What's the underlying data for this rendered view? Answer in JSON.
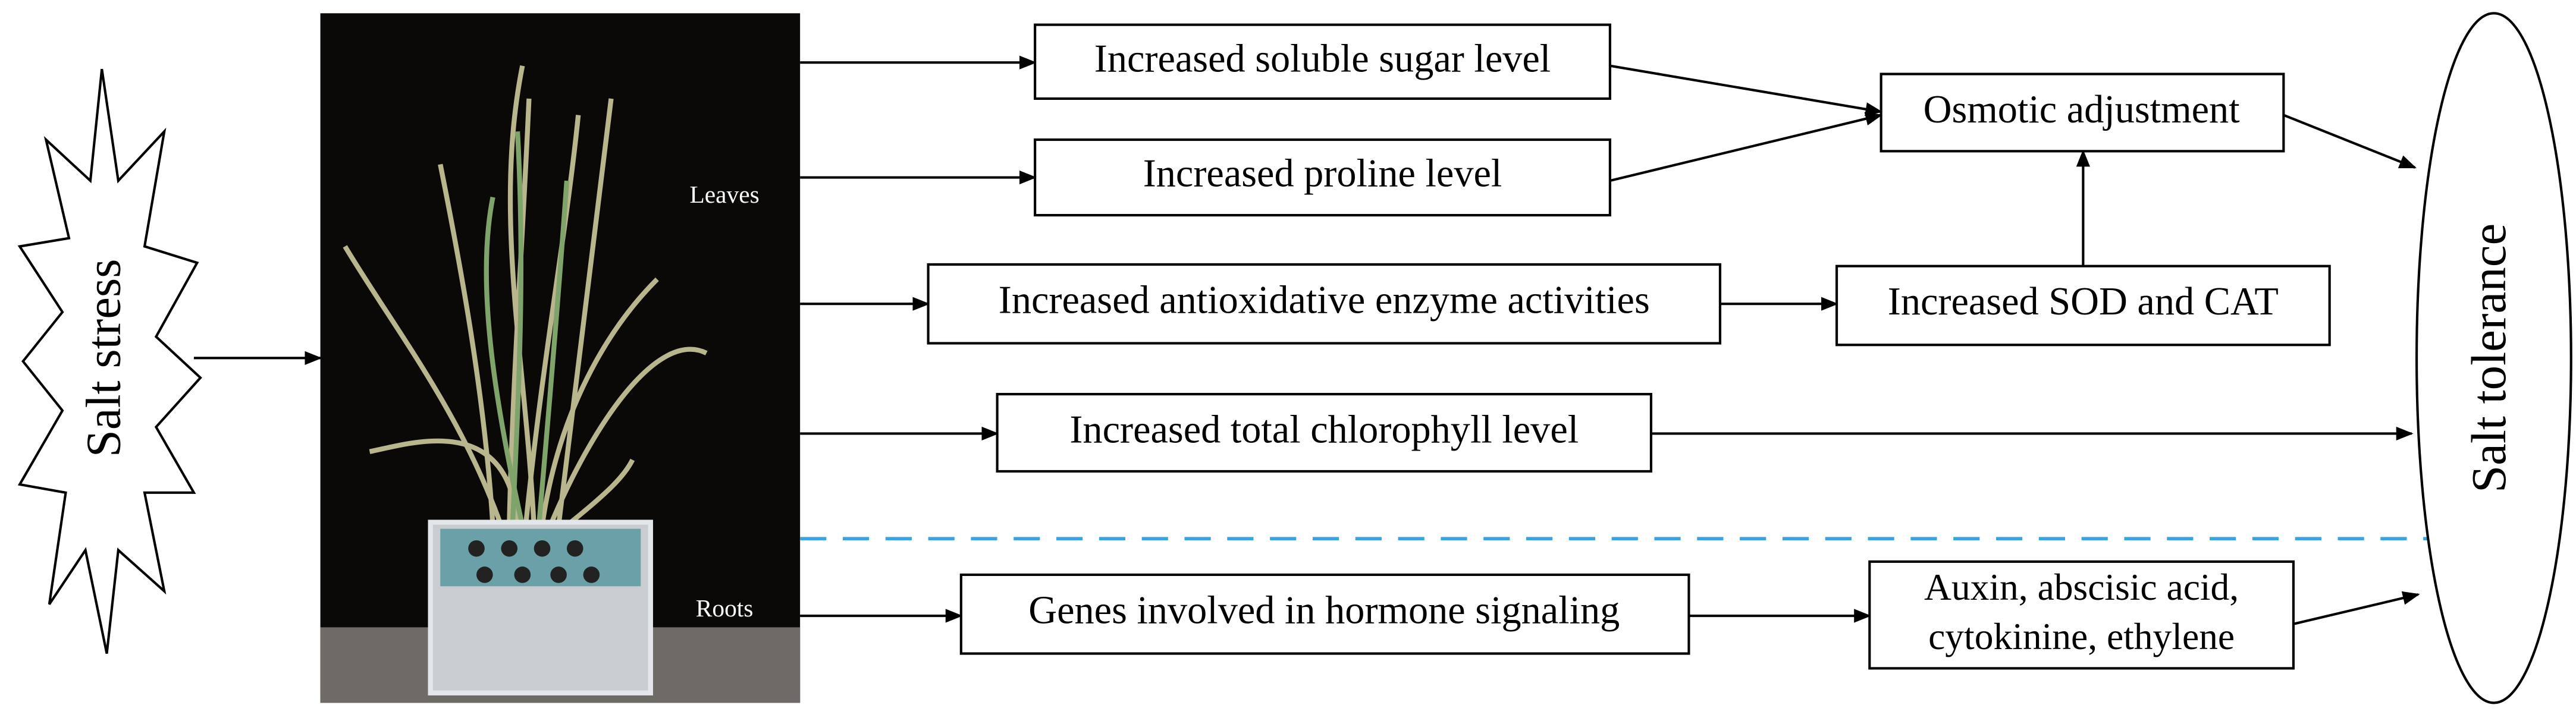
{
  "start": {
    "label": "Salt stress"
  },
  "photo": {
    "leaves_label": "Leaves",
    "roots_label": "Roots"
  },
  "nodes": [
    {
      "label": "Increased soluble sugar level"
    },
    {
      "label": "Increased proline level"
    },
    {
      "label": "Increased antioxidative enzyme activities"
    },
    {
      "label": "Increased total chlorophyll level"
    },
    {
      "label": "Genes involved in hormone signaling"
    },
    {
      "label": "Osmotic adjustment"
    },
    {
      "label": "Increased SOD and CAT"
    },
    {
      "lines": [
        "Auxin, abscisic acid,",
        "cytokinine, ethylene"
      ]
    }
  ],
  "end": {
    "label": "Salt tolerance"
  }
}
